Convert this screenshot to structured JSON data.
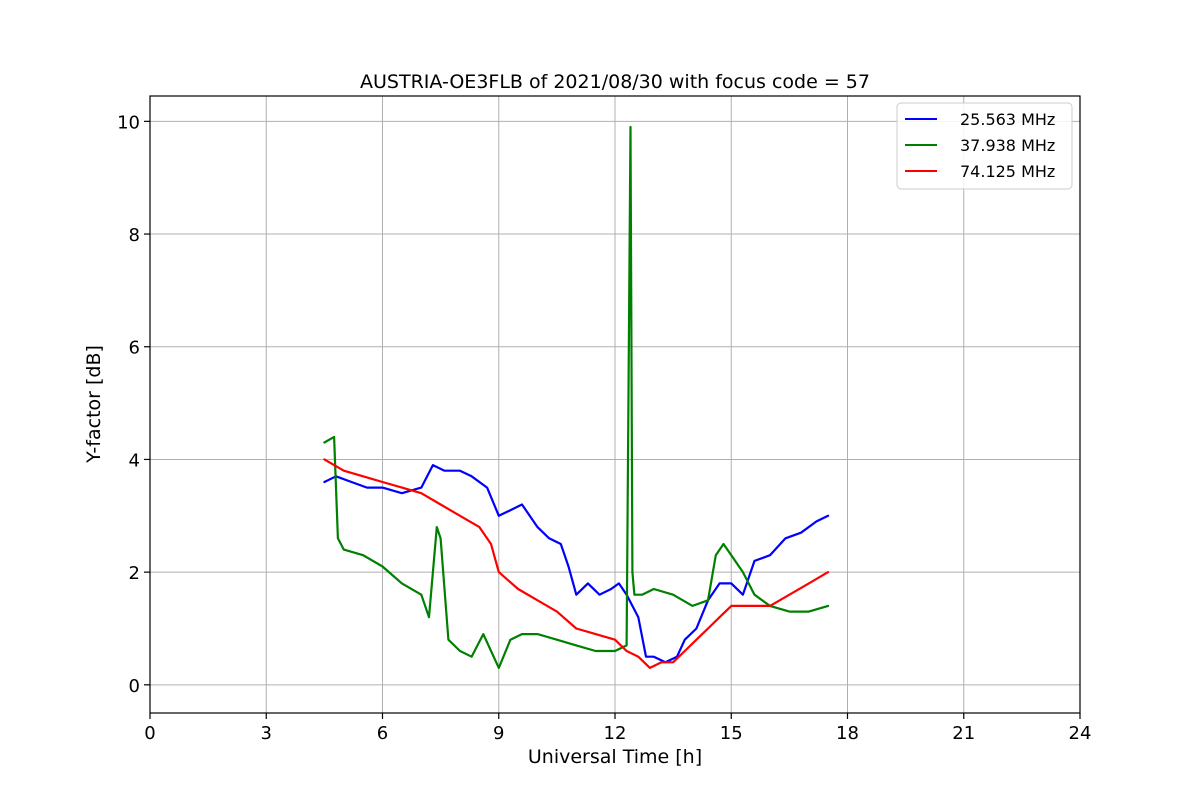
{
  "chart_data": {
    "type": "line",
    "title": "AUSTRIA-OE3FLB of 2021/08/30 with focus code = 57",
    "xlabel": "Universal Time [h]",
    "ylabel": "Y-factor [dB]",
    "xlim": [
      0,
      24
    ],
    "ylim": [
      -0.5,
      10.45
    ],
    "xticks": [
      0,
      3,
      6,
      9,
      12,
      15,
      18,
      21,
      24
    ],
    "yticks": [
      0,
      2,
      4,
      6,
      8,
      10
    ],
    "grid": true,
    "legend_position": "top-right",
    "series": [
      {
        "name": "25.563 MHz",
        "color": "#0000ff",
        "x": [
          4.5,
          4.8,
          5.2,
          5.6,
          6.0,
          6.5,
          7.0,
          7.3,
          7.6,
          8.0,
          8.3,
          8.7,
          9.0,
          9.3,
          9.6,
          10.0,
          10.3,
          10.6,
          10.8,
          11.0,
          11.3,
          11.6,
          11.9,
          12.1,
          12.3,
          12.6,
          12.8,
          13.0,
          13.3,
          13.6,
          13.8,
          14.1,
          14.4,
          14.7,
          15.0,
          15.3,
          15.6,
          16.0,
          16.4,
          16.8,
          17.2,
          17.5
        ],
        "y": [
          3.6,
          3.7,
          3.6,
          3.5,
          3.5,
          3.4,
          3.5,
          3.9,
          3.8,
          3.8,
          3.7,
          3.5,
          3.0,
          3.1,
          3.2,
          2.8,
          2.6,
          2.5,
          2.1,
          1.6,
          1.8,
          1.6,
          1.7,
          1.8,
          1.6,
          1.2,
          0.5,
          0.5,
          0.4,
          0.5,
          0.8,
          1.0,
          1.5,
          1.8,
          1.8,
          1.6,
          2.2,
          2.3,
          2.6,
          2.7,
          2.9,
          3.0
        ]
      },
      {
        "name": "37.938 MHz",
        "color": "#008000",
        "x": [
          4.5,
          4.75,
          4.85,
          5.0,
          5.5,
          6.0,
          6.5,
          7.0,
          7.2,
          7.4,
          7.5,
          7.7,
          8.0,
          8.3,
          8.6,
          9.0,
          9.3,
          9.6,
          10.0,
          10.5,
          11.0,
          11.5,
          12.0,
          12.3,
          12.4,
          12.45,
          12.5,
          12.7,
          13.0,
          13.5,
          14.0,
          14.4,
          14.6,
          14.8,
          15.0,
          15.3,
          15.6,
          16.0,
          16.5,
          17.0,
          17.5
        ],
        "y": [
          4.3,
          4.4,
          2.6,
          2.4,
          2.3,
          2.1,
          1.8,
          1.6,
          1.2,
          2.8,
          2.6,
          0.8,
          0.6,
          0.5,
          0.9,
          0.3,
          0.8,
          0.9,
          0.9,
          0.8,
          0.7,
          0.6,
          0.6,
          0.7,
          9.9,
          2.0,
          1.6,
          1.6,
          1.7,
          1.6,
          1.4,
          1.5,
          2.3,
          2.5,
          2.3,
          2.0,
          1.6,
          1.4,
          1.3,
          1.3,
          1.4
        ]
      },
      {
        "name": "74.125 MHz",
        "color": "#ff0000",
        "x": [
          4.5,
          5.0,
          5.5,
          6.0,
          6.5,
          7.0,
          7.5,
          8.0,
          8.5,
          8.8,
          9.0,
          9.5,
          10.0,
          10.5,
          11.0,
          11.5,
          12.0,
          12.3,
          12.6,
          12.9,
          13.2,
          13.5,
          13.8,
          14.1,
          14.4,
          14.7,
          15.0,
          15.5,
          16.0,
          16.5,
          17.0,
          17.5
        ],
        "y": [
          4.0,
          3.8,
          3.7,
          3.6,
          3.5,
          3.4,
          3.2,
          3.0,
          2.8,
          2.5,
          2.0,
          1.7,
          1.5,
          1.3,
          1.0,
          0.9,
          0.8,
          0.6,
          0.5,
          0.3,
          0.4,
          0.4,
          0.6,
          0.8,
          1.0,
          1.2,
          1.4,
          1.4,
          1.4,
          1.6,
          1.8,
          2.0
        ]
      }
    ]
  }
}
